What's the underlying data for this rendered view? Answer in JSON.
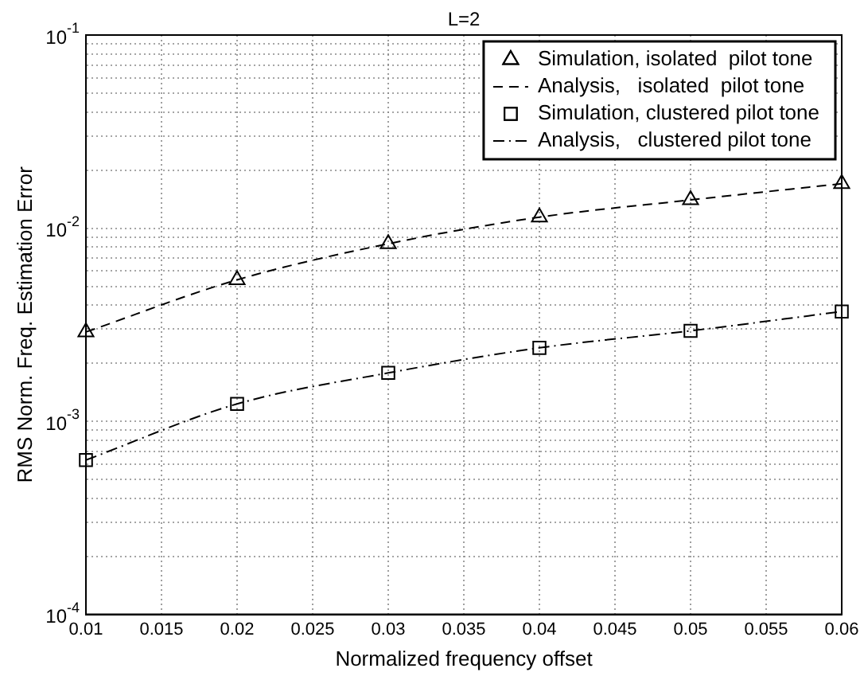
{
  "chart_data": {
    "type": "scatter",
    "title": "L=2",
    "xlabel": "Normalized frequency offset",
    "ylabel": "RMS Norm. Freq. Estimation Error",
    "x": [
      0.01,
      0.02,
      0.03,
      0.04,
      0.05,
      0.06
    ],
    "series": [
      {
        "name": "Simulation, isolated  pilot tone",
        "marker": "triangle",
        "color": "#000000",
        "values": [
          0.0029,
          0.0054,
          0.0083,
          0.0114,
          0.014,
          0.017
        ]
      },
      {
        "name": "Analysis,   isolated  pilot tone",
        "type": "line",
        "marker": "none",
        "line_style": "dashed",
        "color": "#000000",
        "values": [
          0.0029,
          0.0054,
          0.0083,
          0.0114,
          0.014,
          0.017
        ]
      },
      {
        "name": "Simulation, clustered pilot tone",
        "marker": "square",
        "color": "#000000",
        "values": [
          0.00063,
          0.00123,
          0.00178,
          0.0024,
          0.00294,
          0.0037
        ]
      },
      {
        "name": "Analysis,   clustered pilot tone",
        "type": "line",
        "marker": "none",
        "line_style": "dashdot",
        "color": "#000000",
        "values": [
          0.00063,
          0.00123,
          0.00178,
          0.0024,
          0.00294,
          0.0037
        ]
      }
    ],
    "log": "y",
    "grid": true,
    "legend": "top right",
    "xlim": [
      0.01,
      0.06
    ],
    "xticks": [
      0.01,
      0.015,
      0.02,
      0.025,
      0.03,
      0.035,
      0.04,
      0.045,
      0.05,
      0.055,
      0.06
    ],
    "ylim": [
      0.0001,
      0.1
    ],
    "yticks": [
      {
        "value": 0.0001,
        "label": "10$^{-4}$"
      },
      {
        "value": 0.0002,
        "label": null
      },
      {
        "value": 0.0003,
        "label": null
      },
      {
        "value": 0.0004,
        "label": null
      },
      {
        "value": 0.0005,
        "label": null
      },
      {
        "value": 0.0006,
        "label": null
      },
      {
        "value": 0.0007,
        "label": null
      },
      {
        "value": 0.0008,
        "label": null
      },
      {
        "value": 0.0009,
        "label": null
      },
      {
        "value": 0.001,
        "label": "10$^{-3}$"
      },
      {
        "value": 0.002,
        "label": null
      },
      {
        "value": 0.003,
        "label": null
      },
      {
        "value": 0.004,
        "label": null
      },
      {
        "value": 0.005,
        "label": null
      },
      {
        "value": 0.006,
        "label": null
      },
      {
        "value": 0.007,
        "label": null
      },
      {
        "value": 0.008,
        "label": null
      },
      {
        "value": 0.009,
        "label": null
      },
      {
        "value": 0.01,
        "label": "10$^{-2}$"
      },
      {
        "value": 0.02,
        "label": null
      },
      {
        "value": 0.03,
        "label": null
      },
      {
        "value": 0.04,
        "label": null
      },
      {
        "value": 0.05,
        "label": null
      },
      {
        "value": 0.06,
        "label": null
      },
      {
        "value": 0.07,
        "label": null
      },
      {
        "value": 0.08,
        "label": null
      },
      {
        "value": 0.09,
        "label": null
      },
      {
        "value": 0.1,
        "label": "10$^{-1}$"
      }
    ]
  }
}
